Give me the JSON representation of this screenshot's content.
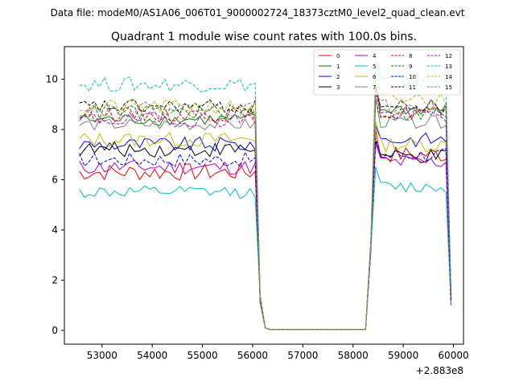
{
  "figure": {
    "suptitle": "Data file: modeM0/AS1A06_006T01_9000002724_18373cztM0_level2_quad_clean.evt"
  },
  "chart_data": {
    "type": "line",
    "title": "Quadrant 1 module wise count rates with 100.0s bins.",
    "xlabel": "",
    "ylabel": "",
    "x_offset_label": "+2.883e8",
    "xlim": [
      52250,
      60200
    ],
    "ylim": [
      -0.55,
      11.3
    ],
    "xticks": [
      53000,
      54000,
      55000,
      56000,
      57000,
      58000,
      59000,
      60000
    ],
    "yticks": [
      0,
      2,
      4,
      6,
      8,
      10
    ],
    "grid": false,
    "legend_position": "top-right",
    "segments": [
      {
        "start": 52550,
        "end": 56050
      },
      {
        "start": 56050,
        "end": 56250,
        "transition": "down"
      },
      {
        "start": 56350,
        "end": 58250,
        "flat": 0.03
      },
      {
        "start": 58250,
        "end": 58450,
        "transition": "up"
      },
      {
        "start": 58450,
        "end": 59850
      },
      {
        "start": 59850,
        "end": 59950,
        "transition": "down"
      }
    ],
    "step": 100,
    "series": [
      {
        "name": "0",
        "color": "#ff0000",
        "dash": "solid",
        "level1": 6.3,
        "level2": 7.0,
        "amp": 0.35,
        "end": 1.0
      },
      {
        "name": "1",
        "color": "#008000",
        "dash": "solid",
        "level1": 8.4,
        "level2": 8.8,
        "amp": 0.25,
        "end": 1.6
      },
      {
        "name": "2",
        "color": "#0000ff",
        "dash": "solid",
        "level1": 7.4,
        "level2": 7.6,
        "amp": 0.3,
        "end": 1.3
      },
      {
        "name": "3",
        "color": "#000000",
        "dash": "solid",
        "level1": 7.2,
        "level2": 6.9,
        "amp": 0.3,
        "end": 1.5
      },
      {
        "name": "4",
        "color": "#bf00bf",
        "dash": "solid",
        "level1": 6.5,
        "level2": 6.7,
        "amp": 0.3,
        "end": 1.2
      },
      {
        "name": "5",
        "color": "#00bfbf",
        "dash": "solid",
        "level1": 5.5,
        "level2": 5.7,
        "amp": 0.25,
        "end": 1.1
      },
      {
        "name": "6",
        "color": "#bfbf00",
        "dash": "solid",
        "level1": 7.6,
        "level2": 7.4,
        "amp": 0.3,
        "end": 1.4
      },
      {
        "name": "7",
        "color": "#808080",
        "dash": "solid",
        "level1": 8.2,
        "level2": 8.3,
        "amp": 0.25,
        "end": 1.5
      },
      {
        "name": "8",
        "color": "#ff0000",
        "dash": "dashed",
        "level1": 8.6,
        "level2": 8.7,
        "amp": 0.3,
        "end": 1.6
      },
      {
        "name": "9",
        "color": "#008000",
        "dash": "dashed",
        "level1": 8.7,
        "level2": 8.6,
        "amp": 0.3,
        "end": 1.5
      },
      {
        "name": "10",
        "color": "#0000ff",
        "dash": "dashed",
        "level1": 6.8,
        "level2": 7.0,
        "amp": 0.3,
        "end": 1.2
      },
      {
        "name": "11",
        "color": "#000000",
        "dash": "dashed",
        "level1": 8.9,
        "level2": 8.9,
        "amp": 0.3,
        "end": 1.6
      },
      {
        "name": "12",
        "color": "#bf00bf",
        "dash": "dashed",
        "level1": 8.4,
        "level2": 8.6,
        "amp": 0.3,
        "end": 1.5
      },
      {
        "name": "13",
        "color": "#00bfbf",
        "dash": "dashed",
        "level1": 9.8,
        "level2": 9.9,
        "amp": 0.3,
        "end": 1.6
      },
      {
        "name": "14",
        "color": "#bfbf00",
        "dash": "dashed",
        "level1": 8.9,
        "level2": 9.2,
        "amp": 0.3,
        "end": 1.6
      },
      {
        "name": "15",
        "color": "#808080",
        "dash": "dashed",
        "level1": 8.8,
        "level2": 8.9,
        "amp": 0.3,
        "end": 1.5
      }
    ]
  }
}
